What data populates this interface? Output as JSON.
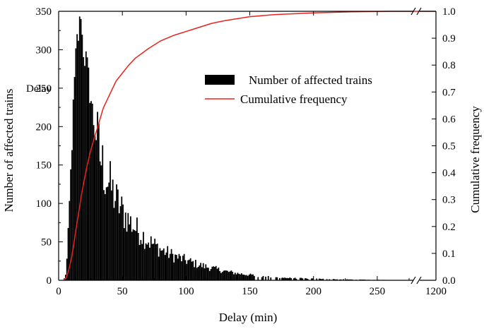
{
  "chart_data": {
    "type": "bar",
    "xlabel": "Delay (min)",
    "ylabel": "Number of affected trains",
    "y2label": "Cumulative frequency",
    "annotation": "Delay",
    "xlim": [
      0,
      280
    ],
    "x_break": {
      "after": 280,
      "end_label": "1200"
    },
    "ylim": [
      0,
      350
    ],
    "y2lim": [
      0,
      1.0
    ],
    "xticks": [
      0,
      50,
      100,
      150,
      200,
      250
    ],
    "yticks": [
      0,
      50,
      100,
      150,
      200,
      250,
      300,
      350
    ],
    "y2ticks": [
      0.0,
      0.1,
      0.2,
      0.3,
      0.4,
      0.5,
      0.6,
      0.7,
      0.8,
      0.9,
      1.0
    ],
    "legend_position": "center-right",
    "grid": false,
    "series": [
      {
        "name": "Number of affected trains",
        "type": "bar",
        "color": "#000000",
        "envelope": [
          [
            4,
            0
          ],
          [
            6,
            10
          ],
          [
            8,
            80
          ],
          [
            10,
            160
          ],
          [
            12,
            240
          ],
          [
            14,
            300
          ],
          [
            16,
            328
          ],
          [
            18,
            320
          ],
          [
            20,
            300
          ],
          [
            24,
            255
          ],
          [
            28,
            200
          ],
          [
            32,
            165
          ],
          [
            36,
            140
          ],
          [
            40,
            125
          ],
          [
            45,
            105
          ],
          [
            50,
            90
          ],
          [
            55,
            78
          ],
          [
            60,
            68
          ],
          [
            70,
            52
          ],
          [
            80,
            40
          ],
          [
            90,
            32
          ],
          [
            100,
            26
          ],
          [
            110,
            20
          ],
          [
            120,
            16
          ],
          [
            130,
            12
          ],
          [
            140,
            9
          ],
          [
            150,
            7
          ],
          [
            160,
            5
          ],
          [
            170,
            4
          ],
          [
            180,
            3
          ],
          [
            200,
            2
          ],
          [
            220,
            1.2
          ],
          [
            250,
            0.5
          ],
          [
            280,
            0.2
          ]
        ]
      },
      {
        "name": "Cumulative frequency",
        "type": "line",
        "axis": "right",
        "color": "#e8231d",
        "points": [
          [
            4,
            0.0
          ],
          [
            6,
            0.01
          ],
          [
            8,
            0.04
          ],
          [
            10,
            0.08
          ],
          [
            12,
            0.14
          ],
          [
            14,
            0.2
          ],
          [
            16,
            0.26
          ],
          [
            18,
            0.32
          ],
          [
            20,
            0.37
          ],
          [
            22,
            0.42
          ],
          [
            25,
            0.48
          ],
          [
            28,
            0.53
          ],
          [
            30,
            0.56
          ],
          [
            35,
            0.64
          ],
          [
            40,
            0.69
          ],
          [
            45,
            0.74
          ],
          [
            50,
            0.77
          ],
          [
            55,
            0.8
          ],
          [
            60,
            0.825
          ],
          [
            70,
            0.86
          ],
          [
            80,
            0.89
          ],
          [
            90,
            0.91
          ],
          [
            100,
            0.925
          ],
          [
            110,
            0.94
          ],
          [
            120,
            0.955
          ],
          [
            130,
            0.965
          ],
          [
            150,
            0.98
          ],
          [
            170,
            0.988
          ],
          [
            200,
            0.994
          ],
          [
            230,
            0.998
          ],
          [
            260,
            1.0
          ],
          [
            280,
            1.0
          ],
          [
            1200,
            1.0
          ]
        ]
      }
    ]
  }
}
